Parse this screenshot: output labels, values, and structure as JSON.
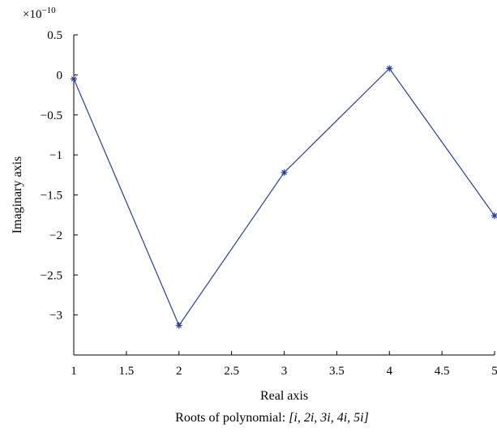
{
  "chart_data": {
    "type": "line",
    "title": "",
    "xlabel": "Real axis",
    "ylabel": "Imaginary axis",
    "caption_prefix": "Roots of polynomial: ",
    "caption_math": "[i, 2i, 3i, 4i, 5i]",
    "exponent_label": "×10",
    "exponent_power": "−10",
    "xlim": [
      1,
      5
    ],
    "ylim": [
      -3.5,
      0.5
    ],
    "grid": false,
    "legend": "none",
    "x_ticks": [
      1,
      1.5,
      2,
      2.5,
      3,
      3.5,
      4,
      4.5,
      5
    ],
    "x_tick_labels": [
      "1",
      "1.5",
      "2",
      "2.5",
      "3",
      "3.5",
      "4",
      "4.5",
      "5"
    ],
    "y_ticks": [
      0.5,
      0,
      -0.5,
      -1,
      -1.5,
      -2,
      -2.5,
      -3
    ],
    "y_tick_labels": [
      "0.5",
      "0",
      "−0.5",
      "−1",
      "−1.5",
      "−2",
      "−2.5",
      "−3"
    ],
    "series": [
      {
        "color": "#2a3d9a",
        "marker": "asterisk",
        "x": [
          1,
          2,
          3,
          4,
          5
        ],
        "y": [
          -0.05,
          -3.13,
          -1.22,
          0.08,
          -1.76
        ]
      }
    ]
  }
}
